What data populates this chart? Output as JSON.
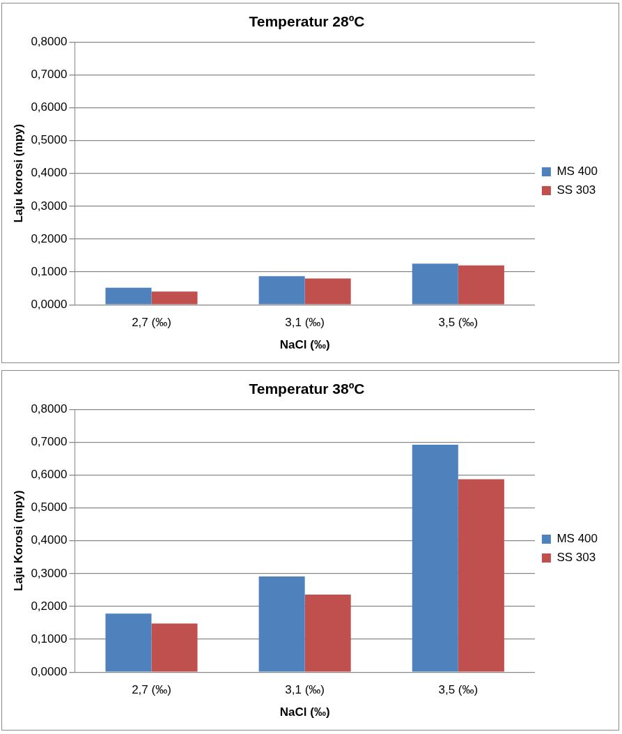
{
  "chart_data": [
    {
      "type": "bar",
      "title": "Temperatur 28ºC",
      "xlabel": "NaCl (‰)",
      "ylabel": "Laju korosi (mpy)",
      "categories": [
        "2,7 (‰)",
        "3,1 (‰)",
        "3,5 (‰)"
      ],
      "series": [
        {
          "name": "MS 400",
          "color": "#4f81bd",
          "values": [
            0.052,
            0.087,
            0.125
          ]
        },
        {
          "name": "SS 303",
          "color": "#c0504d",
          "values": [
            0.04,
            0.08,
            0.12
          ]
        }
      ],
      "ylim": [
        0,
        0.8
      ],
      "yticks": [
        {
          "value": 0,
          "label": "0,0000"
        },
        {
          "value": 0.1,
          "label": "0,1000"
        },
        {
          "value": 0.2,
          "label": "0,2000"
        },
        {
          "value": 0.3,
          "label": "0,3000"
        },
        {
          "value": 0.4,
          "label": "0,4000"
        },
        {
          "value": 0.5,
          "label": "0,5000"
        },
        {
          "value": 0.6,
          "label": "0,6000"
        },
        {
          "value": 0.7,
          "label": "0,7000"
        },
        {
          "value": 0.8,
          "label": "0,8000"
        }
      ],
      "grid": "y",
      "legend": "right"
    },
    {
      "type": "bar",
      "title": "Temperatur 38ºC",
      "xlabel": "NaCl (‰)",
      "ylabel": "Laju Korosi (mpy)",
      "categories": [
        "2,7 (‰)",
        "3,1 (‰)",
        "3,5 (‰)"
      ],
      "series": [
        {
          "name": "MS 400",
          "color": "#4f81bd",
          "values": [
            0.178,
            0.291,
            0.692
          ]
        },
        {
          "name": "SS 303",
          "color": "#c0504d",
          "values": [
            0.148,
            0.236,
            0.587
          ]
        }
      ],
      "ylim": [
        0,
        0.8
      ],
      "yticks": [
        {
          "value": 0,
          "label": "0,0000"
        },
        {
          "value": 0.1,
          "label": "0,1000"
        },
        {
          "value": 0.2,
          "label": "0,2000"
        },
        {
          "value": 0.3,
          "label": "0,3000"
        },
        {
          "value": 0.4,
          "label": "0,4000"
        },
        {
          "value": 0.5,
          "label": "0,5000"
        },
        {
          "value": 0.6,
          "label": "0,6000"
        },
        {
          "value": 0.7,
          "label": "0,7000"
        },
        {
          "value": 0.8,
          "label": "0,8000"
        }
      ],
      "grid": "y",
      "legend": "right"
    }
  ]
}
